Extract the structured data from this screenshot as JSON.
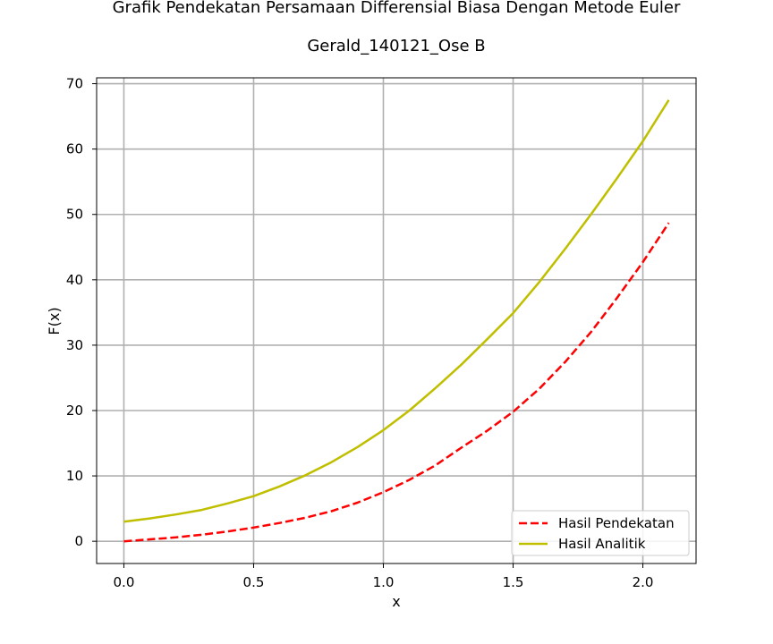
{
  "chart_data": {
    "type": "line",
    "title": "Grafik Pendekatan Persamaan Differensial Biasa Dengan Metode Euler",
    "subtitle": "Gerald_140121_Ose B",
    "xlabel": "x",
    "ylabel": "F(x)",
    "xlim": [
      -0.105,
      2.205
    ],
    "ylim": [
      -3.4,
      70.9
    ],
    "xticks": [
      0.0,
      0.5,
      1.0,
      1.5,
      2.0
    ],
    "xtick_labels": [
      "0.0",
      "0.5",
      "1.0",
      "1.5",
      "2.0"
    ],
    "yticks": [
      0,
      10,
      20,
      30,
      40,
      50,
      60,
      70
    ],
    "ytick_labels": [
      "0",
      "10",
      "20",
      "30",
      "40",
      "50",
      "60",
      "70"
    ],
    "grid": true,
    "legend_position": "lower-right",
    "x": [
      0.0,
      0.1,
      0.2,
      0.3,
      0.4,
      0.5,
      0.6,
      0.7,
      0.8,
      0.9,
      1.0,
      1.1,
      1.2,
      1.3,
      1.4,
      1.5,
      1.6,
      1.7,
      1.8,
      1.9,
      2.0,
      2.1
    ],
    "series": [
      {
        "name": "Hasil Pendekatan",
        "color": "#ff0000",
        "style": "dashed",
        "values": [
          0.0,
          0.3,
          0.6,
          1.0,
          1.5,
          2.1,
          2.8,
          3.6,
          4.6,
          5.9,
          7.5,
          9.4,
          11.6,
          14.3,
          16.9,
          19.8,
          23.3,
          27.4,
          32.0,
          37.2,
          42.7,
          48.7
        ]
      },
      {
        "name": "Hasil Analitik",
        "color": "#bfbf00",
        "style": "solid",
        "values": [
          3.0,
          3.5,
          4.1,
          4.8,
          5.8,
          6.9,
          8.4,
          10.1,
          12.1,
          14.4,
          17.0,
          20.0,
          23.4,
          27.0,
          30.9,
          34.9,
          39.6,
          44.7,
          50.0,
          55.5,
          61.2,
          67.5
        ]
      }
    ]
  }
}
